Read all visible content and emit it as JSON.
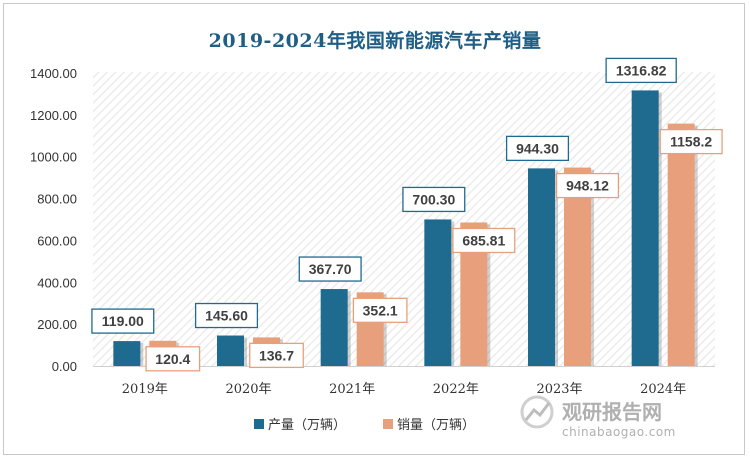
{
  "chart_data": {
    "type": "bar",
    "title": "2019-2024年我国新能源汽车产销量",
    "categories": [
      "2019年",
      "2020年",
      "2021年",
      "2022年",
      "2023年",
      "2024年"
    ],
    "series": [
      {
        "name": "产量（万辆）",
        "values": [
          119.0,
          145.6,
          367.7,
          700.3,
          944.3,
          1316.82
        ],
        "labels": [
          "119.00",
          "145.60",
          "367.70",
          "700.30",
          "944.30",
          "1316.82"
        ],
        "color": "#1f6b8f"
      },
      {
        "name": "销量（万辆）",
        "values": [
          120.4,
          136.7,
          352.1,
          685.81,
          948.12,
          1158.2
        ],
        "labels": [
          "120.4",
          "136.7",
          "352.1",
          "685.81",
          "948.12",
          "1158.2"
        ],
        "color": "#e8a07c"
      }
    ],
    "yticks": [
      "0.00",
      "200.00",
      "400.00",
      "600.00",
      "800.00",
      "1000.00",
      "1200.00",
      "1400.00"
    ],
    "ylim": [
      0,
      1400
    ],
    "xlabel": "",
    "ylabel": "",
    "legend": "bottom-center",
    "grid": false
  },
  "watermark": {
    "brand": "观研报告网",
    "url": "chinabaogao.com"
  }
}
